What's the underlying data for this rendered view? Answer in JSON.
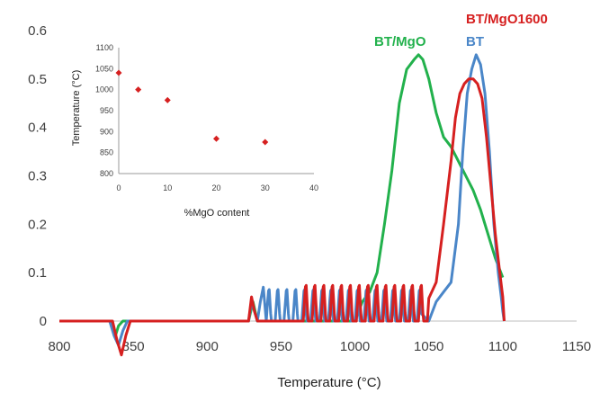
{
  "chart_data": [
    {
      "type": "line",
      "title": "",
      "xlabel": "Temperature (°C)",
      "ylabel": "",
      "xlim": [
        800,
        1150
      ],
      "ylim": [
        0,
        0.6
      ],
      "x_ticks": [
        "800",
        "850",
        "900",
        "950",
        "1000",
        "1050",
        "1100",
        "1150"
      ],
      "y_ticks": [
        "0",
        "0.1",
        "0.2",
        "0.3",
        "0.4",
        "0.5",
        "0.6"
      ],
      "grid": false,
      "legend_position": "labels at top-right near peaks",
      "series": [
        {
          "name": "BT/MgO",
          "color": "#22b14c",
          "x": [
            800,
            835,
            838,
            840,
            843,
            846,
            900,
            928,
            931,
            934,
            938,
            1000,
            1005,
            1010,
            1015,
            1020,
            1025,
            1030,
            1035,
            1040,
            1043,
            1046,
            1050,
            1055,
            1060,
            1065,
            1070,
            1075,
            1080,
            1085,
            1090,
            1095,
            1100
          ],
          "values": [
            0.0,
            0.0,
            -0.03,
            -0.01,
            0.0,
            0.0,
            0.0,
            0.0,
            0.04,
            0.0,
            0.0,
            0.0,
            0.04,
            0.06,
            0.1,
            0.2,
            0.31,
            0.45,
            0.52,
            0.54,
            0.55,
            0.54,
            0.5,
            0.43,
            0.38,
            0.36,
            0.33,
            0.3,
            0.27,
            0.23,
            0.18,
            0.13,
            0.09
          ]
        },
        {
          "name": "BT",
          "color": "#4a86c8",
          "x": [
            800,
            834,
            837,
            840,
            843,
            846,
            900,
            928,
            930,
            934,
            936,
            938,
            940,
            1040,
            1050,
            1055,
            1060,
            1065,
            1070,
            1073,
            1076,
            1079,
            1082,
            1085,
            1088,
            1091,
            1094,
            1097,
            1099,
            1100,
            1101
          ],
          "values": [
            0.0,
            0.0,
            -0.03,
            -0.05,
            -0.02,
            0.0,
            0.0,
            0.0,
            0.04,
            0.0,
            0.04,
            0.07,
            0.0,
            0.05,
            0.0,
            0.04,
            0.06,
            0.08,
            0.2,
            0.35,
            0.47,
            0.52,
            0.55,
            0.53,
            0.47,
            0.35,
            0.2,
            0.1,
            0.05,
            0.02,
            0.0
          ],
          "peak_train": {
            "x_start": 940,
            "x_end": 1045,
            "peak_height": 0.075
          }
        },
        {
          "name": "BT/MgO1600",
          "color": "#d62020",
          "x": [
            800,
            836,
            839,
            842,
            845,
            848,
            900,
            928,
            930,
            932,
            934,
            965,
            1000,
            1030,
            1050,
            1055,
            1060,
            1065,
            1068,
            1071,
            1074,
            1077,
            1080,
            1083,
            1086,
            1089,
            1092,
            1095,
            1098,
            1100,
            1101
          ],
          "values": [
            0.0,
            0.0,
            -0.04,
            -0.07,
            -0.03,
            0.0,
            0.0,
            0.0,
            0.05,
            0.02,
            0.0,
            0.05,
            0.06,
            0.08,
            0.1,
            0.08,
            0.2,
            0.33,
            0.42,
            0.47,
            0.49,
            0.5,
            0.5,
            0.49,
            0.46,
            0.38,
            0.28,
            0.18,
            0.1,
            0.05,
            0.0
          ],
          "peak_train": {
            "x_start": 965,
            "x_end": 1050,
            "peak_height": 0.085
          }
        }
      ]
    },
    {
      "type": "scatter",
      "title": "",
      "xlabel": "%MgO content",
      "ylabel": "Temperature (°C)",
      "xlim": [
        0,
        40
      ],
      "ylim": [
        800,
        1100
      ],
      "x_ticks": [
        "0",
        "10",
        "20",
        "30",
        "40"
      ],
      "y_ticks": [
        "800",
        "850",
        "900",
        "950",
        "1000",
        "1050",
        "1100"
      ],
      "grid": false,
      "legend_position": "none",
      "series": [
        {
          "color": "#d62020",
          "marker": "diamond",
          "x": [
            0,
            4,
            10,
            20,
            30
          ],
          "values": [
            1040,
            1000,
            975,
            883,
            875
          ]
        }
      ]
    }
  ]
}
